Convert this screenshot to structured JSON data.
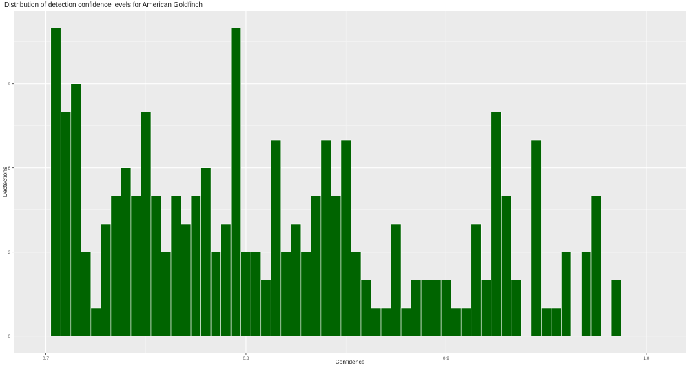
{
  "chart_data": {
    "type": "bar",
    "title": "Distribution of detection confidence levels for American Goldfinch",
    "xlabel": "Confidence",
    "ylabel": "Dectections",
    "xlim": [
      0.684,
      1.02
    ],
    "ylim": [
      -0.6,
      11.6
    ],
    "x_ticks": [
      0.7,
      0.8,
      0.9,
      1.0
    ],
    "x_tick_labels": [
      "0.7",
      "0.8",
      "0.9",
      "1.0"
    ],
    "y_ticks": [
      0,
      3,
      6,
      9
    ],
    "y_tick_labels": [
      "0",
      "3",
      "6",
      "9"
    ],
    "bin_start": 0.7025,
    "bin_width": 0.005,
    "values": [
      11,
      8,
      9,
      3,
      1,
      4,
      5,
      6,
      5,
      8,
      5,
      3,
      5,
      4,
      5,
      6,
      3,
      4,
      11,
      3,
      3,
      2,
      7,
      3,
      4,
      3,
      5,
      7,
      5,
      7,
      3,
      2,
      1,
      1,
      4,
      1,
      2,
      2,
      2,
      2,
      1,
      1,
      4,
      2,
      8,
      5,
      2,
      0,
      7,
      1,
      1,
      3,
      0,
      3,
      5,
      0,
      2
    ],
    "bar_color": "#006400",
    "bar_border_color": "#ffffff",
    "panel_color": "#ebebeb",
    "grid": true
  }
}
